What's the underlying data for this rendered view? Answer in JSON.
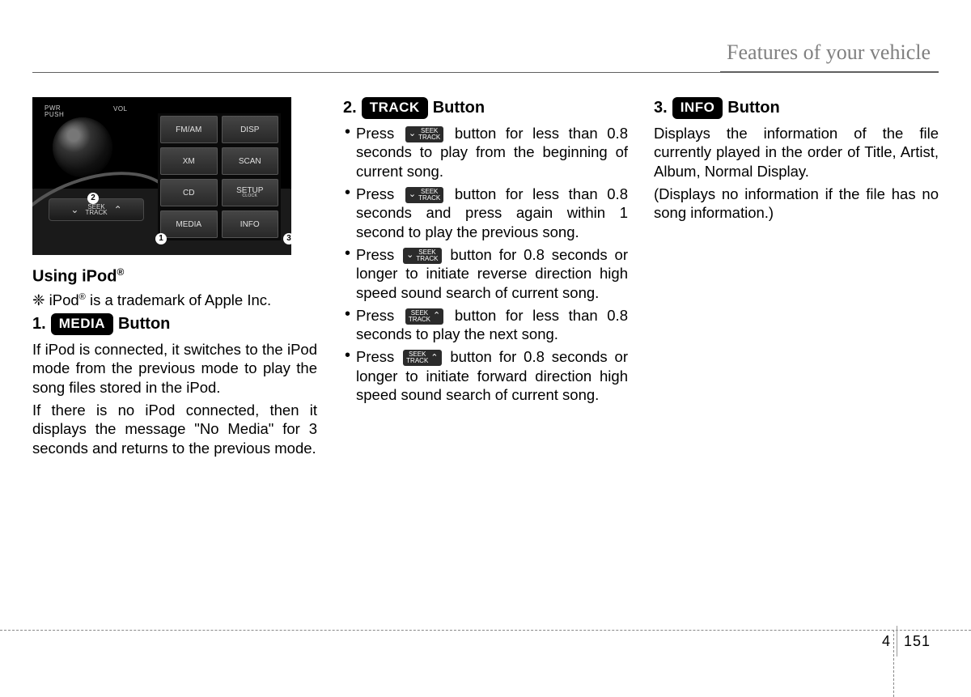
{
  "header": {
    "title": "Features of your vehicle"
  },
  "figure": {
    "pwr_label_1": "PWR",
    "pwr_label_2": "PUSH",
    "vol_label": "VOL",
    "seek_top": "SEEK",
    "seek_bot": "TRACK",
    "buttons": [
      "FM/AM",
      "DISP",
      "XM",
      "SCAN",
      "CD",
      "SETUP",
      "MEDIA",
      "INFO"
    ],
    "setup_sub": "CLOCK"
  },
  "col1": {
    "using_title": "Using iPod",
    "using_reg": "®",
    "note_prefix": "❈ iPod",
    "note_suffix": " is a trademark of Apple Inc.",
    "h1_num": "1.",
    "h1_pill": "MEDIA",
    "h1_word": "Button",
    "p1": "If iPod is connected, it switches to the iPod mode from the previous mode to play the song files stored in the iPod.",
    "p2": "If there is no iPod connected, then it displays the message \"No Media\" for 3 seconds and returns to the previous mode."
  },
  "col2": {
    "h2_num": "2.",
    "h2_pill": "TRACK",
    "h2_word": "Button",
    "seek_top": "SEEK",
    "seek_bot": "TRACK",
    "b1_pre": "Press ",
    "b1_post": " button for less than 0.8 seconds to play from the beginning of current song.",
    "b2_pre": "Press ",
    "b2_post": " button for less than 0.8 seconds and press again within 1 second to play the previous song.",
    "b3_pre": "Press ",
    "b3_post": " button for 0.8 seconds or longer to initiate reverse direction high speed sound search of current song.",
    "b4_pre": "Press ",
    "b4_post": " button for less than 0.8 seconds to play the next song.",
    "b5_pre": "Press ",
    "b5_post": " button for 0.8 seconds or longer to initiate forward direction high speed sound search of current song."
  },
  "col3": {
    "h3_num": "3.",
    "h3_pill": "INFO",
    "h3_word": "Button",
    "p1": "Displays the information of the file currently played in the order of  Title, Artist,  Album, Normal Display.",
    "p2": "(Displays no information if the file has no song information.)"
  },
  "footer": {
    "chapter": "4",
    "page": "151"
  }
}
